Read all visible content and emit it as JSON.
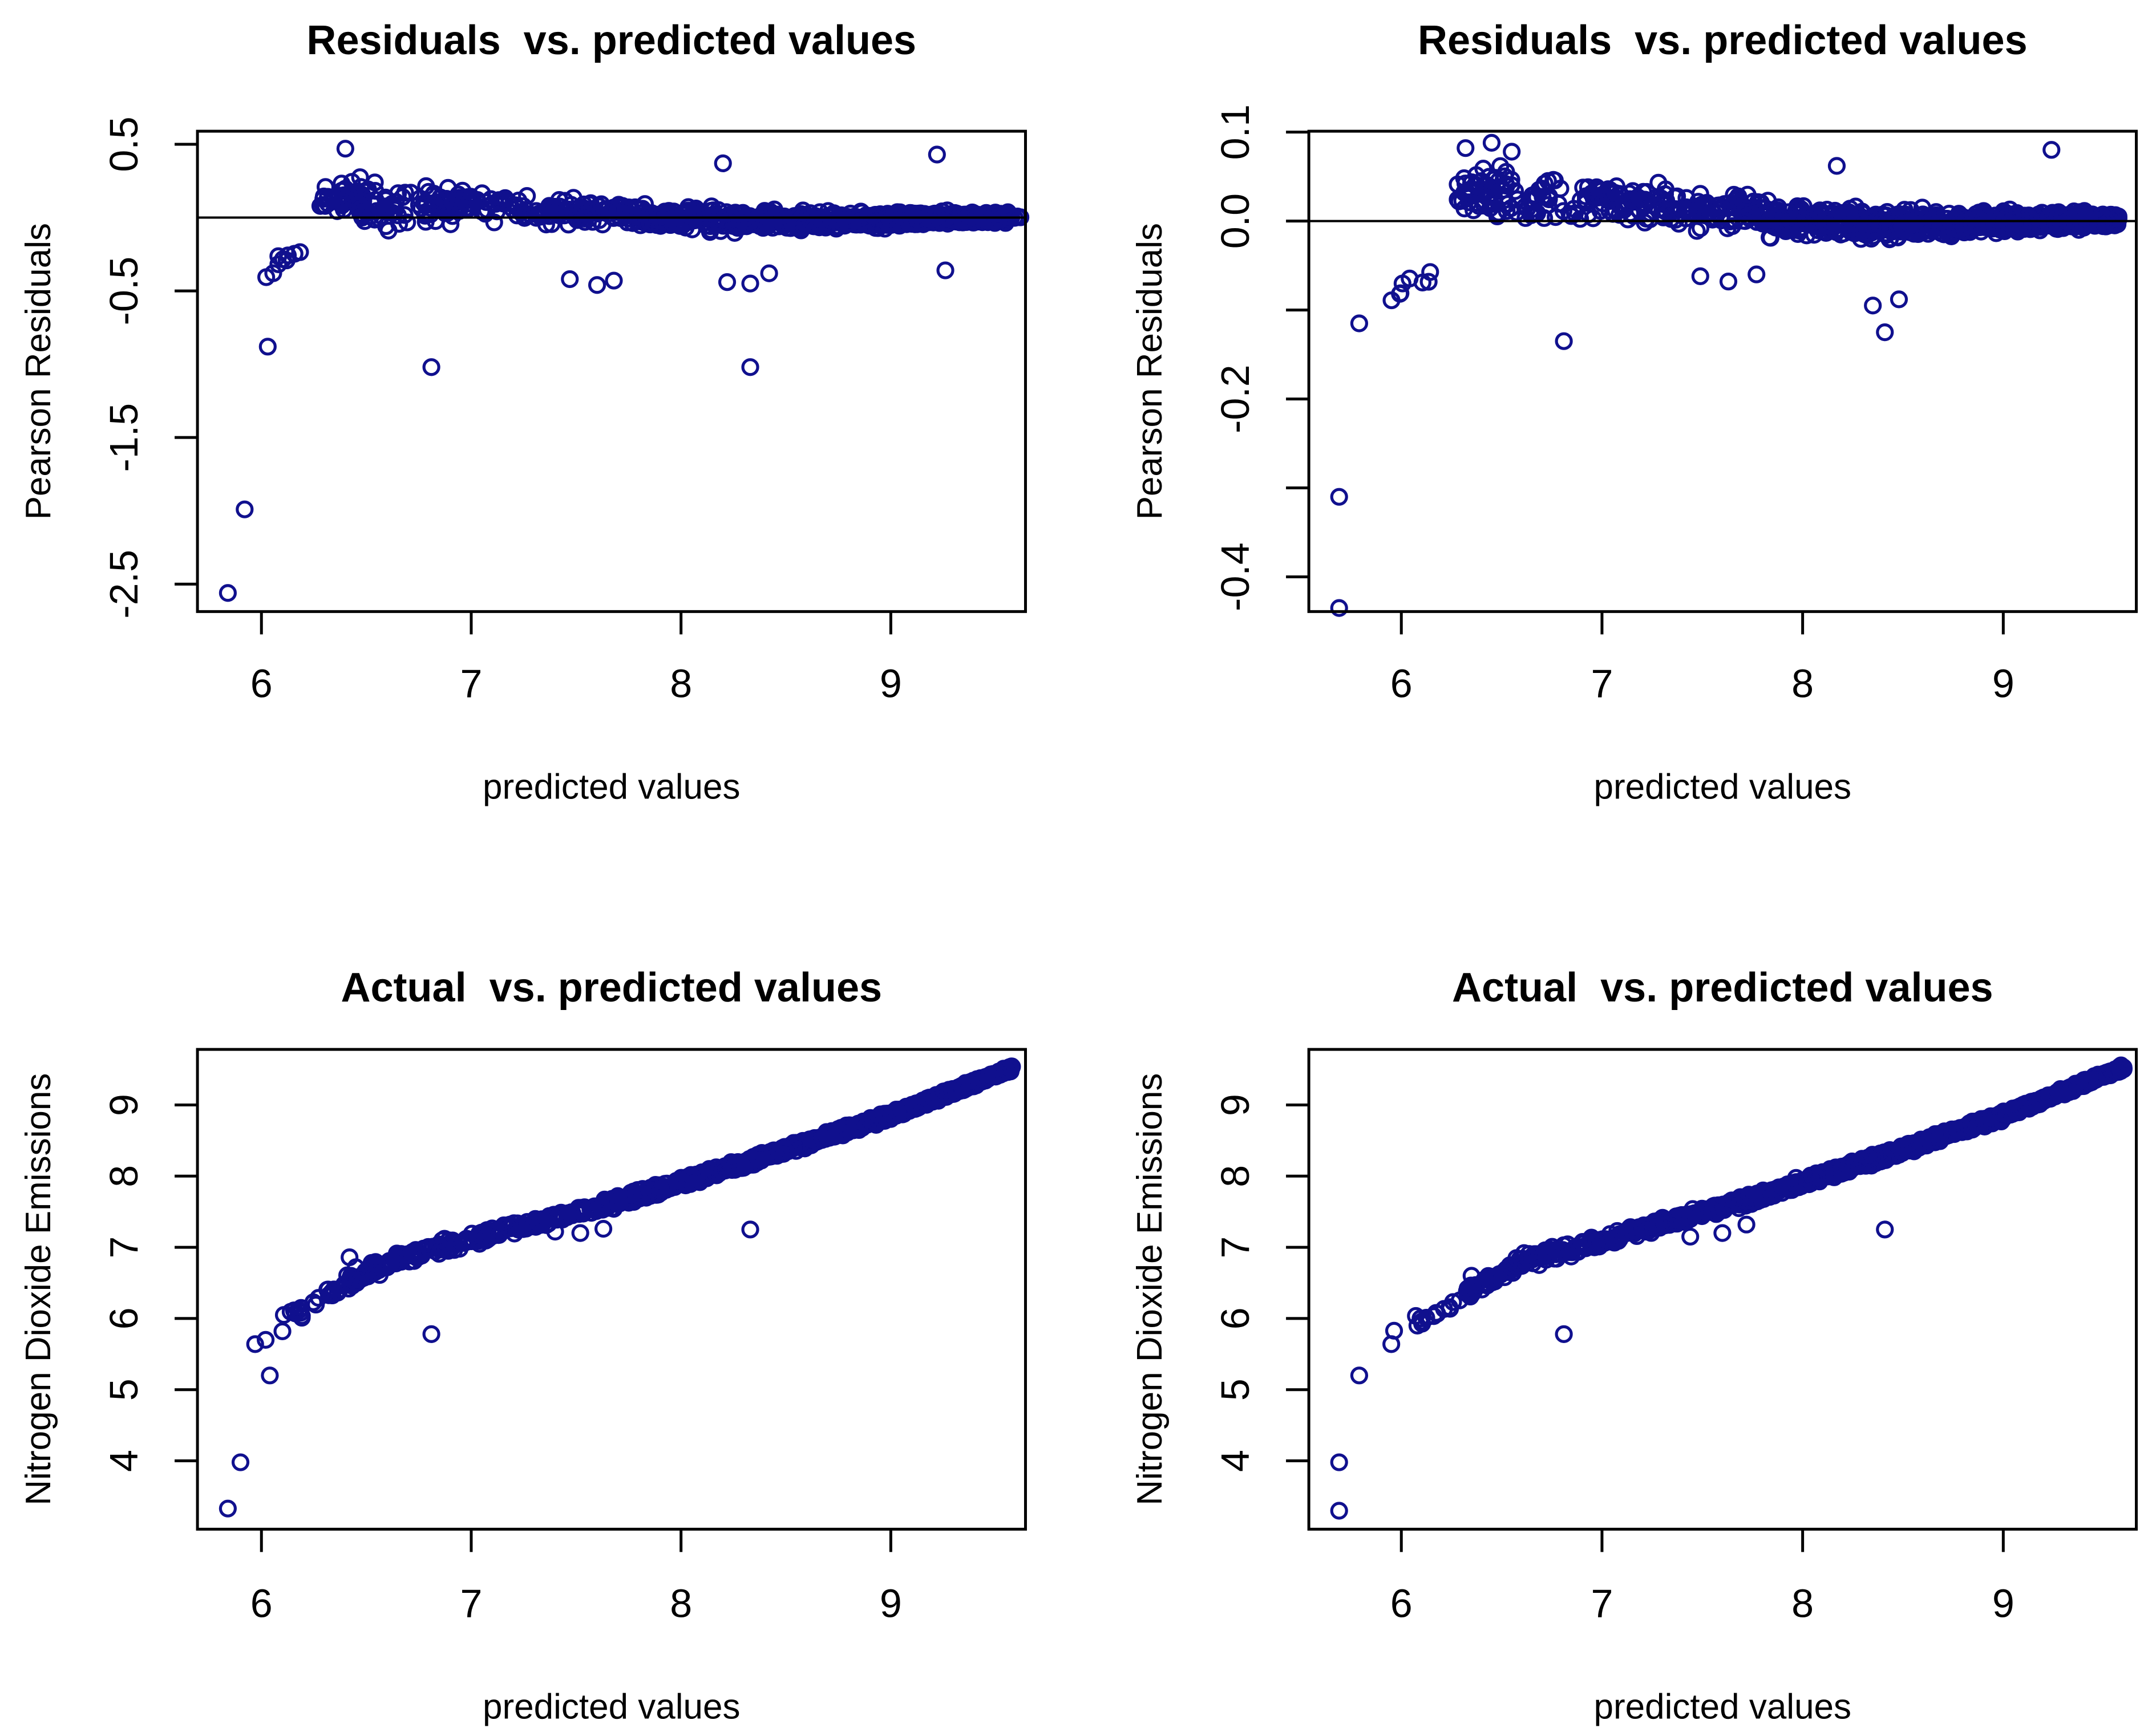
{
  "figure": {
    "background": "#ffffff",
    "point_color": "#10108E",
    "axis_color": "#000000",
    "text_color": "#000000",
    "marker": "open-circle"
  },
  "chart_data": [
    {
      "id": "residuals-model1",
      "type": "scatter",
      "position": "top-left",
      "title": "Residuals  vs. predicted values",
      "xlabel": "predicted values",
      "ylabel": "Pearson Residuals",
      "xlim": [
        5.695,
        9.642
      ],
      "ylim": [
        -2.687,
        0.589
      ],
      "xticks": [
        6,
        7,
        8,
        9
      ],
      "xtick_labels": [
        "6",
        "7",
        "8",
        "9"
      ],
      "yticks": [
        0.5,
        -0.5,
        -1.5,
        -2.5
      ],
      "ytick_labels": [
        "0.5",
        "-0.5",
        "-1.5",
        "-2.5"
      ],
      "zero_line": 0.0,
      "grid": false,
      "legend": null,
      "seed": 11,
      "outliers": [
        [
          5.84,
          -2.56
        ],
        [
          5.92,
          -1.99
        ],
        [
          6.03,
          -0.88
        ],
        [
          6.81,
          -1.02
        ],
        [
          8.33,
          -1.02
        ],
        [
          7.47,
          -0.42
        ],
        [
          7.6,
          -0.46
        ],
        [
          7.68,
          -0.43
        ],
        [
          8.22,
          -0.44
        ],
        [
          8.33,
          -0.45
        ],
        [
          8.42,
          -0.38
        ],
        [
          9.26,
          -0.36
        ],
        [
          6.4,
          0.47
        ],
        [
          8.2,
          0.37
        ],
        [
          9.22,
          0.43
        ]
      ],
      "point_clusters": [
        {
          "x0": 5.98,
          "x1": 6.22,
          "count": 9,
          "y_start": -0.42,
          "y_end": -0.18,
          "spread_start": 0.1,
          "spread_end": 0.08
        },
        {
          "x0": 6.28,
          "x1": 6.55,
          "count": 45,
          "y_start": 0.12,
          "y_end": 0.17,
          "spread_start": 0.16,
          "spread_end": 0.14
        },
        {
          "x0": 6.45,
          "x1": 6.78,
          "count": 40,
          "y_start": 0.04,
          "y_end": 0.1,
          "spread_start": 0.18,
          "spread_end": 0.15
        },
        {
          "x0": 6.78,
          "x1": 7.3,
          "count": 85,
          "y_start": 0.1,
          "y_end": 0.07,
          "spread_start": 0.16,
          "spread_end": 0.14
        },
        {
          "x0": 7.3,
          "x1": 7.8,
          "count": 95,
          "y_start": 0.05,
          "y_end": 0.02,
          "spread_start": 0.13,
          "spread_end": 0.12
        },
        {
          "x0": 7.8,
          "x1": 8.3,
          "count": 160,
          "y_start": 0.0,
          "y_end": -0.02,
          "spread_start": 0.11,
          "spread_end": 0.1
        },
        {
          "x0": 8.3,
          "x1": 9.0,
          "count": 300,
          "y_start": -0.02,
          "y_end": -0.02,
          "spread_start": 0.09,
          "spread_end": 0.08
        },
        {
          "x0": 9.0,
          "x1": 9.56,
          "count": 330,
          "y_start": -0.01,
          "y_end": 0.0,
          "spread_start": 0.07,
          "spread_end": 0.045
        },
        {
          "x0": 9.5,
          "x1": 9.62,
          "count": 12,
          "y_start": 0.0,
          "y_end": 0.0,
          "spread_start": 0.035,
          "spread_end": 0.02
        }
      ]
    },
    {
      "id": "residuals-model2",
      "type": "scatter",
      "position": "top-right",
      "title": "Residuals  vs. predicted values",
      "xlabel": "predicted values",
      "ylabel": "Pearson Residuals",
      "xlim": [
        5.539,
        9.663
      ],
      "ylim": [
        -0.439,
        0.101
      ],
      "xticks": [
        6,
        7,
        8,
        9
      ],
      "xtick_labels": [
        "6",
        "7",
        "8",
        "9"
      ],
      "yticks": [
        0.1,
        0.0,
        -0.1,
        -0.2,
        -0.3,
        -0.4
      ],
      "ytick_labels": [
        "0.1",
        "0.0",
        "",
        "-0.2",
        "",
        "-0.4"
      ],
      "zero_line": 0.0,
      "grid": false,
      "legend": null,
      "seed": 22,
      "outliers": [
        [
          5.69,
          -0.435
        ],
        [
          5.69,
          -0.31
        ],
        [
          5.79,
          -0.115
        ],
        [
          6.81,
          -0.135
        ],
        [
          8.41,
          -0.125
        ],
        [
          8.35,
          -0.095
        ],
        [
          8.48,
          -0.088
        ],
        [
          7.49,
          -0.062
        ],
        [
          7.63,
          -0.068
        ],
        [
          7.77,
          -0.06
        ],
        [
          6.32,
          0.082
        ],
        [
          6.45,
          0.088
        ],
        [
          6.55,
          0.078
        ],
        [
          8.17,
          0.062
        ],
        [
          9.24,
          0.08
        ]
      ],
      "point_clusters": [
        {
          "x0": 5.95,
          "x1": 6.2,
          "count": 8,
          "y_start": -0.085,
          "y_end": -0.045,
          "spread_start": 0.018,
          "spread_end": 0.015
        },
        {
          "x0": 6.28,
          "x1": 6.55,
          "count": 45,
          "y_start": 0.03,
          "y_end": 0.045,
          "spread_start": 0.04,
          "spread_end": 0.035
        },
        {
          "x0": 6.45,
          "x1": 6.78,
          "count": 40,
          "y_start": 0.015,
          "y_end": 0.03,
          "spread_start": 0.045,
          "spread_end": 0.04
        },
        {
          "x0": 6.78,
          "x1": 7.3,
          "count": 85,
          "y_start": 0.025,
          "y_end": 0.018,
          "spread_start": 0.035,
          "spread_end": 0.03
        },
        {
          "x0": 7.3,
          "x1": 7.8,
          "count": 95,
          "y_start": 0.015,
          "y_end": 0.01,
          "spread_start": 0.03,
          "spread_end": 0.026
        },
        {
          "x0": 7.8,
          "x1": 8.3,
          "count": 160,
          "y_start": 0.003,
          "y_end": -0.004,
          "spread_start": 0.026,
          "spread_end": 0.024
        },
        {
          "x0": 8.3,
          "x1": 9.0,
          "count": 300,
          "y_start": -0.005,
          "y_end": -0.002,
          "spread_start": 0.022,
          "spread_end": 0.018
        },
        {
          "x0": 9.0,
          "x1": 9.58,
          "count": 330,
          "y_start": 0.0,
          "y_end": 0.002,
          "spread_start": 0.016,
          "spread_end": 0.01
        }
      ]
    },
    {
      "id": "actual-model1",
      "type": "scatter",
      "position": "bottom-left",
      "title": "Actual  vs. predicted values",
      "xlabel": "predicted values",
      "ylabel": "Nitrogen Dioxide Emissions",
      "xlim": [
        5.695,
        9.642
      ],
      "ylim": [
        3.04,
        9.78
      ],
      "xticks": [
        6,
        7,
        8,
        9
      ],
      "xtick_labels": [
        "6",
        "7",
        "8",
        "9"
      ],
      "yticks": [
        4,
        5,
        6,
        7,
        8,
        9
      ],
      "ytick_labels": [
        "4",
        "5",
        "6",
        "7",
        "8",
        "9"
      ],
      "zero_line": null,
      "grid": false,
      "legend": null,
      "seed": 33,
      "outliers": [
        [
          5.84,
          3.33
        ],
        [
          5.9,
          3.98
        ],
        [
          6.04,
          5.2
        ],
        [
          5.97,
          5.64
        ],
        [
          6.02,
          5.7
        ],
        [
          6.1,
          5.82
        ],
        [
          6.81,
          5.78
        ],
        [
          8.33,
          7.25
        ],
        [
          7.4,
          7.22
        ],
        [
          7.52,
          7.2
        ],
        [
          7.63,
          7.26
        ],
        [
          6.42,
          6.86
        ],
        [
          6.45,
          6.72
        ]
      ],
      "point_clusters": [
        {
          "x0": 6.05,
          "x1": 6.3,
          "count": 12,
          "y_start": 5.9,
          "y_end": 6.25,
          "spread_start": 0.13,
          "spread_end": 0.13
        },
        {
          "x0": 6.3,
          "x1": 6.6,
          "count": 55,
          "y_start": 6.3,
          "y_end": 6.8,
          "spread_start": 0.15,
          "spread_end": 0.14
        },
        {
          "x0": 6.6,
          "x1": 7.1,
          "count": 90,
          "y_start": 6.8,
          "y_end": 7.18,
          "spread_start": 0.14,
          "spread_end": 0.12
        },
        {
          "x0": 7.1,
          "x1": 7.7,
          "count": 130,
          "y_start": 7.18,
          "y_end": 7.65,
          "spread_start": 0.12,
          "spread_end": 0.11
        },
        {
          "x0": 7.7,
          "x1": 8.3,
          "count": 210,
          "y_start": 7.65,
          "y_end": 8.18,
          "spread_start": 0.1,
          "spread_end": 0.1
        },
        {
          "x0": 8.3,
          "x1": 9.0,
          "count": 310,
          "y_start": 8.18,
          "y_end": 8.85,
          "spread_start": 0.09,
          "spread_end": 0.08
        },
        {
          "x0": 9.0,
          "x1": 9.58,
          "count": 320,
          "y_start": 8.85,
          "y_end": 9.52,
          "spread_start": 0.07,
          "spread_end": 0.05
        }
      ]
    },
    {
      "id": "actual-model2",
      "type": "scatter",
      "position": "bottom-right",
      "title": "Actual  vs. predicted values",
      "xlabel": "predicted values",
      "ylabel": "Nitrogen Dioxide Emissions",
      "xlim": [
        5.539,
        9.663
      ],
      "ylim": [
        3.04,
        9.78
      ],
      "xticks": [
        6,
        7,
        8,
        9
      ],
      "xtick_labels": [
        "6",
        "7",
        "8",
        "9"
      ],
      "yticks": [
        4,
        5,
        6,
        7,
        8,
        9
      ],
      "ytick_labels": [
        "4",
        "5",
        "6",
        "7",
        "8",
        "9"
      ],
      "zero_line": null,
      "grid": false,
      "legend": null,
      "seed": 44,
      "outliers": [
        [
          5.69,
          3.3
        ],
        [
          5.69,
          3.98
        ],
        [
          5.79,
          5.2
        ],
        [
          5.95,
          5.64
        ],
        [
          6.08,
          5.9
        ],
        [
          6.81,
          5.78
        ],
        [
          8.41,
          7.25
        ],
        [
          7.44,
          7.15
        ],
        [
          7.6,
          7.2
        ],
        [
          7.72,
          7.32
        ],
        [
          6.35,
          6.6
        ]
      ],
      "point_clusters": [
        {
          "x0": 5.95,
          "x1": 6.3,
          "count": 14,
          "y_start": 5.8,
          "y_end": 6.25,
          "spread_start": 0.13,
          "spread_end": 0.13
        },
        {
          "x0": 6.3,
          "x1": 6.6,
          "count": 55,
          "y_start": 6.3,
          "y_end": 6.8,
          "spread_start": 0.15,
          "spread_end": 0.14
        },
        {
          "x0": 6.6,
          "x1": 7.1,
          "count": 90,
          "y_start": 6.8,
          "y_end": 7.18,
          "spread_start": 0.14,
          "spread_end": 0.12
        },
        {
          "x0": 7.1,
          "x1": 7.7,
          "count": 130,
          "y_start": 7.18,
          "y_end": 7.65,
          "spread_start": 0.12,
          "spread_end": 0.11
        },
        {
          "x0": 7.7,
          "x1": 8.3,
          "count": 210,
          "y_start": 7.65,
          "y_end": 8.18,
          "spread_start": 0.1,
          "spread_end": 0.1
        },
        {
          "x0": 8.3,
          "x1": 9.0,
          "count": 310,
          "y_start": 8.18,
          "y_end": 8.85,
          "spread_start": 0.09,
          "spread_end": 0.08
        },
        {
          "x0": 9.0,
          "x1": 9.6,
          "count": 320,
          "y_start": 8.85,
          "y_end": 9.53,
          "spread_start": 0.07,
          "spread_end": 0.05
        }
      ]
    }
  ]
}
